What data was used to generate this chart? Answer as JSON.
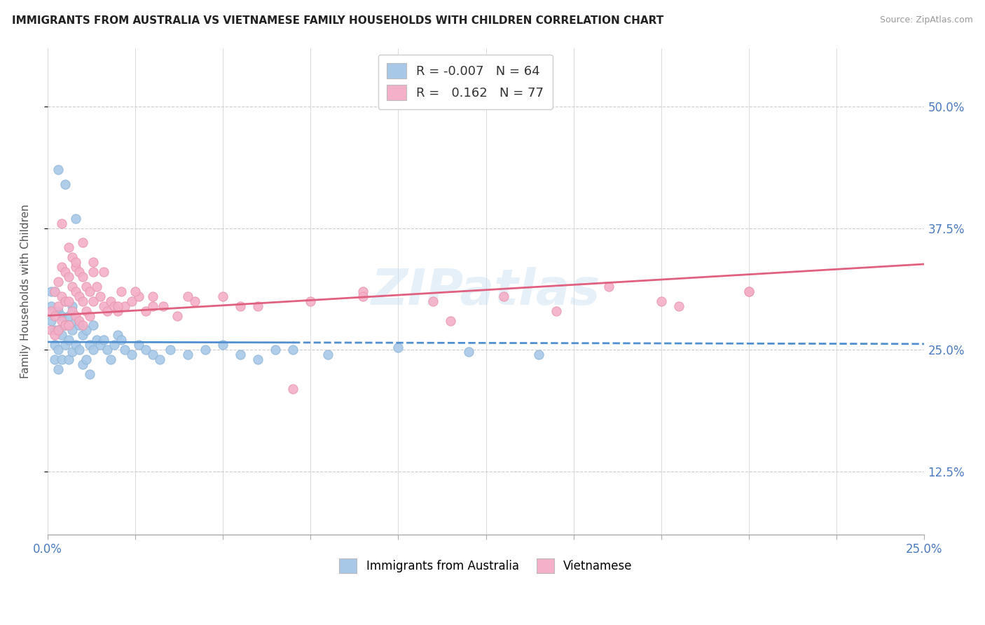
{
  "title": "IMMIGRANTS FROM AUSTRALIA VS VIETNAMESE FAMILY HOUSEHOLDS WITH CHILDREN CORRELATION CHART",
  "source": "Source: ZipAtlas.com",
  "ylabel_ticks": [
    "12.5%",
    "25.0%",
    "37.5%",
    "50.0%"
  ],
  "ylabel_label": "Family Households with Children",
  "series1_color": "#a8c8e8",
  "series2_color": "#f4b0c8",
  "series1_edge": "#90b8d8",
  "series2_edge": "#e898b0",
  "trend1_color": "#5090d0",
  "trend2_color": "#e06080",
  "watermark": "ZIPatlas",
  "background_color": "#ffffff",
  "grid_color": "#cccccc",
  "R1": -0.007,
  "N1": 64,
  "R2": 0.162,
  "N2": 77,
  "xlim": [
    0.0,
    0.25
  ],
  "ylim": [
    0.06,
    0.56
  ],
  "ytick_vals": [
    0.125,
    0.25,
    0.375,
    0.5
  ],
  "blue_scatter_x": [
    0.001,
    0.001,
    0.001,
    0.002,
    0.002,
    0.002,
    0.002,
    0.003,
    0.003,
    0.003,
    0.003,
    0.004,
    0.004,
    0.004,
    0.005,
    0.005,
    0.005,
    0.006,
    0.006,
    0.006,
    0.007,
    0.007,
    0.007,
    0.008,
    0.008,
    0.009,
    0.009,
    0.01,
    0.01,
    0.011,
    0.011,
    0.012,
    0.012,
    0.013,
    0.013,
    0.014,
    0.015,
    0.016,
    0.017,
    0.018,
    0.019,
    0.02,
    0.021,
    0.022,
    0.024,
    0.026,
    0.028,
    0.03,
    0.032,
    0.035,
    0.04,
    0.045,
    0.05,
    0.055,
    0.06,
    0.07,
    0.08,
    0.1,
    0.12,
    0.14,
    0.003,
    0.005,
    0.008,
    0.065
  ],
  "blue_scatter_y": [
    0.28,
    0.295,
    0.31,
    0.27,
    0.255,
    0.24,
    0.31,
    0.29,
    0.27,
    0.25,
    0.23,
    0.285,
    0.265,
    0.24,
    0.3,
    0.275,
    0.255,
    0.285,
    0.26,
    0.24,
    0.295,
    0.27,
    0.248,
    0.28,
    0.255,
    0.275,
    0.25,
    0.265,
    0.235,
    0.27,
    0.24,
    0.255,
    0.225,
    0.275,
    0.25,
    0.26,
    0.255,
    0.26,
    0.25,
    0.24,
    0.255,
    0.265,
    0.26,
    0.25,
    0.245,
    0.255,
    0.25,
    0.245,
    0.24,
    0.25,
    0.245,
    0.25,
    0.255,
    0.245,
    0.24,
    0.25,
    0.245,
    0.252,
    0.248,
    0.245,
    0.435,
    0.42,
    0.385,
    0.25
  ],
  "pink_scatter_x": [
    0.001,
    0.001,
    0.002,
    0.002,
    0.002,
    0.003,
    0.003,
    0.003,
    0.004,
    0.004,
    0.004,
    0.005,
    0.005,
    0.005,
    0.006,
    0.006,
    0.006,
    0.007,
    0.007,
    0.007,
    0.008,
    0.008,
    0.008,
    0.009,
    0.009,
    0.009,
    0.01,
    0.01,
    0.01,
    0.011,
    0.011,
    0.012,
    0.012,
    0.013,
    0.013,
    0.014,
    0.015,
    0.016,
    0.017,
    0.018,
    0.019,
    0.02,
    0.021,
    0.022,
    0.024,
    0.026,
    0.028,
    0.03,
    0.033,
    0.037,
    0.042,
    0.05,
    0.06,
    0.075,
    0.09,
    0.11,
    0.13,
    0.16,
    0.18,
    0.2,
    0.004,
    0.006,
    0.008,
    0.01,
    0.013,
    0.016,
    0.02,
    0.025,
    0.03,
    0.04,
    0.055,
    0.07,
    0.09,
    0.115,
    0.145,
    0.175,
    0.2
  ],
  "pink_scatter_y": [
    0.29,
    0.27,
    0.31,
    0.285,
    0.265,
    0.32,
    0.295,
    0.27,
    0.335,
    0.305,
    0.28,
    0.33,
    0.3,
    0.275,
    0.325,
    0.3,
    0.275,
    0.345,
    0.315,
    0.29,
    0.335,
    0.31,
    0.285,
    0.33,
    0.305,
    0.28,
    0.325,
    0.3,
    0.275,
    0.315,
    0.29,
    0.31,
    0.285,
    0.33,
    0.3,
    0.315,
    0.305,
    0.295,
    0.29,
    0.3,
    0.295,
    0.29,
    0.31,
    0.295,
    0.3,
    0.305,
    0.29,
    0.305,
    0.295,
    0.285,
    0.3,
    0.305,
    0.295,
    0.3,
    0.31,
    0.3,
    0.305,
    0.315,
    0.295,
    0.31,
    0.38,
    0.355,
    0.34,
    0.36,
    0.34,
    0.33,
    0.295,
    0.31,
    0.295,
    0.305,
    0.295,
    0.21,
    0.305,
    0.28,
    0.29,
    0.3,
    0.31
  ]
}
